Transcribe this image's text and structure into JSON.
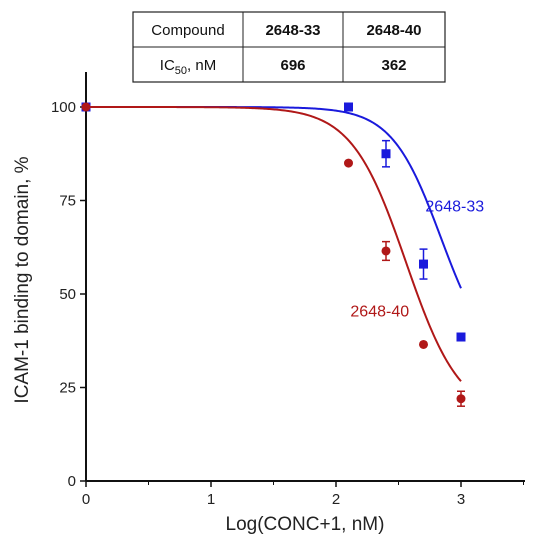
{
  "chart_data": {
    "type": "scatter",
    "xlabel": "Log(CONC+1, nM)",
    "ylabel": "ICAM-1 binding to domain, %",
    "xlim": [
      0,
      3.5
    ],
    "ylim": [
      0,
      110
    ],
    "xticks": [
      0,
      1,
      2,
      3
    ],
    "yticks": [
      0,
      25,
      50,
      75,
      100
    ],
    "grid": false,
    "series": [
      {
        "name": "2648-33",
        "color": "#1a1adc",
        "marker": "square",
        "x": [
          0,
          2.1,
          2.4,
          2.7,
          3.0
        ],
        "y": [
          100,
          100,
          87.5,
          58,
          38.5
        ],
        "err": [
          0,
          0,
          3.5,
          4,
          0
        ],
        "fit": {
          "top": 100,
          "bottom": 30,
          "log_ic50": 2.84,
          "slope": 2.2
        }
      },
      {
        "name": "2648-40",
        "color": "#b01818",
        "marker": "circle",
        "x": [
          0,
          2.1,
          2.4,
          2.7,
          3.0
        ],
        "y": [
          100,
          85,
          61.5,
          36.5,
          22
        ],
        "err": [
          0,
          0,
          2.5,
          0,
          2
        ],
        "fit": {
          "top": 100,
          "bottom": 17,
          "log_ic50": 2.56,
          "slope": 2.0
        }
      }
    ],
    "series_labels": [
      {
        "text": "2648-33",
        "color": "#1a1adc",
        "x": 2.95,
        "y": 72
      },
      {
        "text": "2648-40",
        "color": "#b01818",
        "x": 2.35,
        "y": 44
      }
    ],
    "table": {
      "header": [
        "Compound",
        "2648-33",
        "2648-40"
      ],
      "row_label_main": "IC",
      "row_label_sub": "50",
      "row_label_rest": ", nM",
      "values": [
        "696",
        "362"
      ],
      "header_colors": [
        "#111111",
        "#1a1adc",
        "#b01818"
      ]
    }
  }
}
